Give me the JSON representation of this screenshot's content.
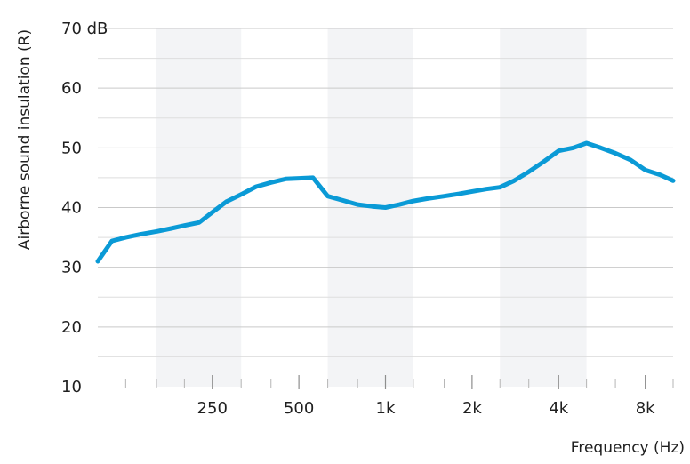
{
  "chart_data": {
    "type": "line",
    "xlabel": "Frequency (Hz)",
    "ylabel": "Airborne sound insulation (R)",
    "y_unit": "dB",
    "ylim": [
      10,
      70
    ],
    "yticks": [
      10,
      20,
      30,
      40,
      50,
      60,
      70
    ],
    "ytick_labels": [
      "10",
      "20",
      "30",
      "40",
      "50",
      "60",
      "70 dB"
    ],
    "x_scale": "log",
    "xlim": [
      100,
      10000
    ],
    "xticks": [
      250,
      500,
      1000,
      2000,
      4000,
      8000
    ],
    "xtick_labels": [
      "250",
      "500",
      "1k",
      "2k",
      "4k",
      "8k"
    ],
    "minor_xticks": [
      125,
      160,
      200,
      315,
      400,
      630,
      800,
      1250,
      1600,
      2500,
      3150,
      5000,
      6300,
      10000
    ],
    "shaded_bands": [
      [
        160,
        315
      ],
      [
        630,
        1250
      ],
      [
        2500,
        5000
      ]
    ],
    "grid": "horizontal",
    "line_color": "#0a9ad6",
    "band_color": "#f3f4f6",
    "series": [
      {
        "x": [
          100,
          112,
          125,
          140,
          160,
          180,
          200,
          225,
          250,
          280,
          315,
          355,
          400,
          450,
          500,
          560,
          630,
          710,
          800,
          900,
          1000,
          1120,
          1250,
          1400,
          1600,
          1800,
          2000,
          2240,
          2500,
          2800,
          3150,
          3550,
          4000,
          4500,
          5000,
          5600,
          6300,
          7100,
          8000,
          9000,
          10000
        ],
        "values": [
          31.0,
          34.4,
          35.0,
          35.5,
          36.0,
          36.5,
          37.0,
          37.5,
          39.2,
          41.0,
          42.2,
          43.5,
          44.2,
          44.8,
          44.9,
          45.0,
          41.9,
          41.2,
          40.5,
          40.2,
          40.0,
          40.5,
          41.1,
          41.5,
          41.9,
          42.3,
          42.7,
          43.1,
          43.4,
          44.5,
          46.0,
          47.7,
          49.5,
          50.0,
          50.8,
          50.0,
          49.1,
          48.0,
          46.3,
          45.5,
          44.5
        ]
      }
    ]
  }
}
